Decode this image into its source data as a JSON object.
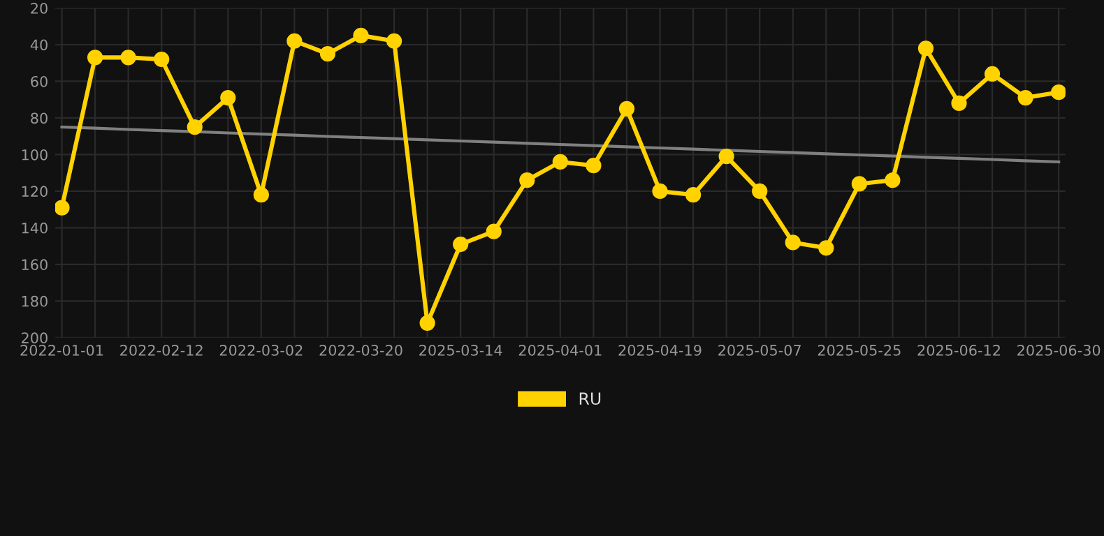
{
  "chart_data": {
    "type": "line",
    "categories": [
      "2022-01-01",
      null,
      null,
      "2022-02-12",
      null,
      null,
      "2022-03-02",
      null,
      null,
      "2022-03-20",
      null,
      null,
      "2025-03-14",
      null,
      null,
      "2025-04-01",
      null,
      null,
      "2025-04-19",
      null,
      null,
      "2025-05-07",
      null,
      null,
      "2025-05-25",
      null,
      null,
      "2025-06-12",
      null,
      null,
      "2025-06-30"
    ],
    "series": [
      {
        "name": "RU",
        "color": "#ffd200",
        "marker": "circle",
        "values": [
          129,
          47,
          47,
          48,
          85,
          69,
          122,
          38,
          45,
          35,
          38,
          192,
          149,
          142,
          114,
          104,
          106,
          75,
          120,
          122,
          101,
          120,
          148,
          151,
          116,
          114,
          42,
          72,
          56,
          69,
          66
        ]
      },
      {
        "type": "line",
        "color": "#808080",
        "marker": "none",
        "values": [
          85.0,
          85.6,
          86.3,
          86.9,
          87.5,
          88.2,
          88.8,
          89.4,
          90.1,
          90.7,
          91.3,
          92.0,
          92.6,
          93.2,
          93.9,
          94.5,
          95.1,
          95.8,
          96.4,
          97.0,
          97.7,
          98.3,
          98.9,
          99.6,
          100.2,
          100.8,
          101.5,
          102.1,
          102.7,
          103.4,
          104.0
        ]
      }
    ],
    "ylim": [
      200,
      20
    ],
    "yticks": [
      20,
      40,
      60,
      80,
      100,
      120,
      140,
      160,
      180,
      200
    ],
    "grid": true,
    "legend": "bottom"
  }
}
